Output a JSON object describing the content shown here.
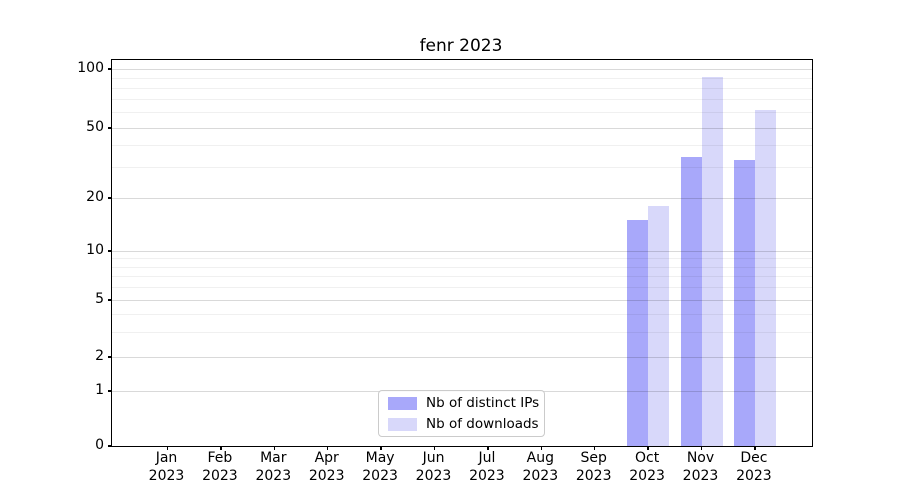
{
  "figure": {
    "title": "fenr 2023",
    "background": "#ffffff"
  },
  "chart_data": {
    "type": "bar",
    "title": "fenr 2023",
    "x_months": [
      "Jan",
      "Feb",
      "Mar",
      "Apr",
      "May",
      "Jun",
      "Jul",
      "Aug",
      "Sep",
      "Oct",
      "Nov",
      "Dec"
    ],
    "x_year": "2023",
    "series": [
      {
        "name": "Nb of distinct IPs",
        "color": "#a8a8fa",
        "values": [
          0,
          0,
          0,
          0,
          0,
          0,
          0,
          0,
          0,
          15,
          34,
          33
        ]
      },
      {
        "name": "Nb of downloads",
        "color": "#d8d8fa",
        "values": [
          0,
          0,
          0,
          0,
          0,
          0,
          0,
          0,
          0,
          18,
          91,
          62
        ]
      }
    ],
    "yscale": "log-like (linear 0-1, logarithmic above)",
    "y_major_ticks": [
      0,
      1,
      2,
      5,
      10,
      20,
      50,
      100
    ],
    "y_minor_gridlines": [
      3,
      4,
      6,
      7,
      8,
      9,
      30,
      40,
      60,
      70,
      80,
      90
    ],
    "ylim": [
      0,
      110
    ],
    "grid": true,
    "grid_major_color": "#d9d9d9",
    "grid_minor_color": "#efefef",
    "spine_color": "#000000",
    "legend_position": "lower center"
  }
}
